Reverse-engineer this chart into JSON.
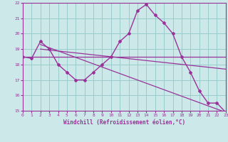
{
  "xlabel": "Windchill (Refroidissement éolien,°C)",
  "bg_color": "#cce8e8",
  "line_color": "#993399",
  "grid_color": "#99cccc",
  "xmin": 0,
  "xmax": 23,
  "ymin": 15,
  "ymax": 22,
  "yticks": [
    15,
    16,
    17,
    18,
    19,
    20,
    21,
    22
  ],
  "xticks": [
    0,
    1,
    2,
    3,
    4,
    5,
    6,
    7,
    8,
    9,
    10,
    11,
    12,
    13,
    14,
    15,
    16,
    17,
    18,
    19,
    20,
    21,
    22,
    23
  ],
  "curve1_x": [
    0,
    1,
    2,
    3,
    4,
    5,
    6,
    7,
    8,
    9,
    10,
    11,
    12,
    13,
    14,
    15,
    16,
    17,
    18,
    19,
    20,
    21,
    22,
    23
  ],
  "curve1_y": [
    18.5,
    18.4,
    19.5,
    19.0,
    18.0,
    17.5,
    17.0,
    17.0,
    17.5,
    18.0,
    18.5,
    19.5,
    20.0,
    21.5,
    21.9,
    21.2,
    20.7,
    20.0,
    18.5,
    17.5,
    16.3,
    15.5,
    15.5,
    14.9
  ],
  "line2_x": [
    0,
    23
  ],
  "line2_y": [
    18.5,
    18.5
  ],
  "line3_x": [
    2,
    23
  ],
  "line3_y": [
    19.3,
    14.9
  ],
  "line4_x": [
    2,
    23
  ],
  "line4_y": [
    19.0,
    17.7
  ]
}
